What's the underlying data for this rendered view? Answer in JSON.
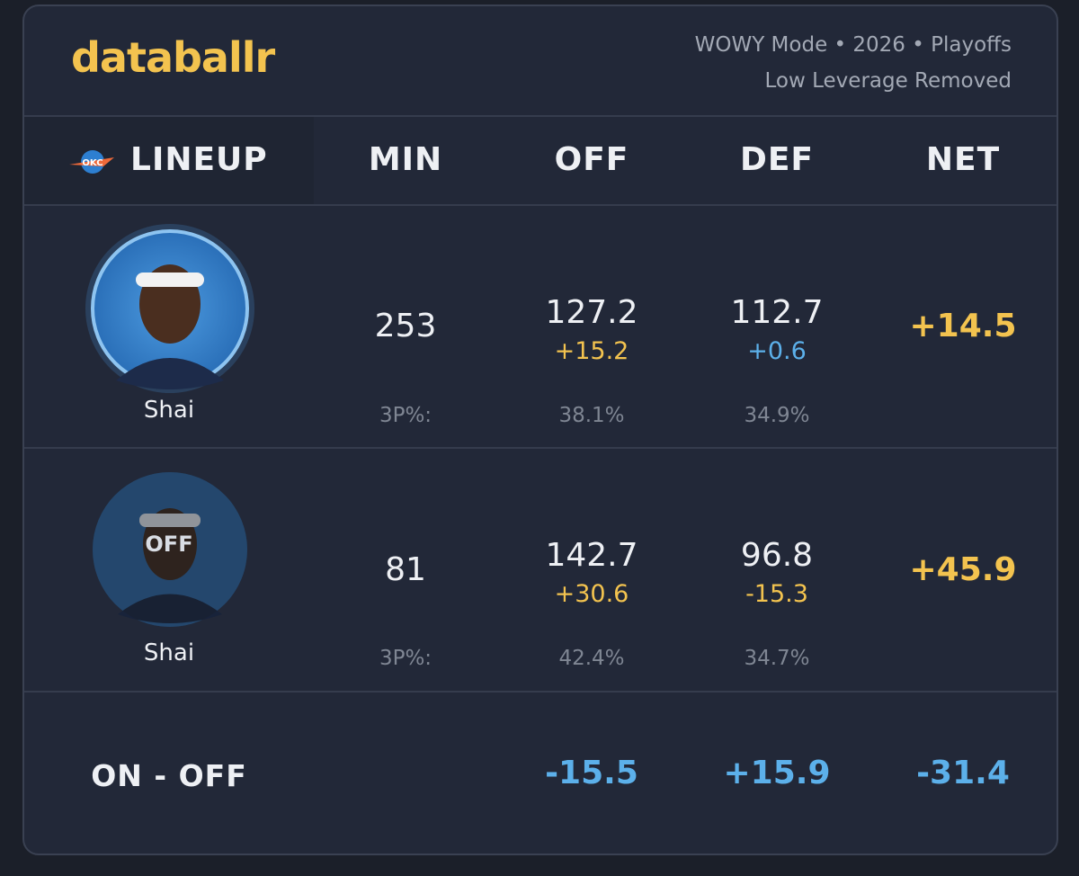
{
  "header": {
    "brand": "databallr",
    "subtitle": [
      "WOWY Mode • 2026 • Playoffs",
      "Low Leverage Removed"
    ]
  },
  "columns": [
    "LINEUP",
    "MIN",
    "OFF",
    "DEF",
    "NET"
  ],
  "rows": [
    {
      "player": "Shai",
      "min": "253",
      "off": "127.2",
      "off_diff": "+15.2",
      "def": "112.7",
      "def_diff": "+0.6",
      "net": "+14.5",
      "three_label": "3P%:",
      "off_3p": "38.1%",
      "def_3p": "34.9%"
    },
    {
      "player": "Shai",
      "badge": "OFF",
      "min": "81",
      "off": "142.7",
      "off_diff": "+30.6",
      "def": "96.8",
      "def_diff": "-15.3",
      "net": "+45.9",
      "three_label": "3P%:",
      "off_3p": "42.4%",
      "def_3p": "34.7%"
    }
  ],
  "summary": {
    "label": "ON - OFF",
    "off": "-15.5",
    "def": "+15.9",
    "net": "-31.4"
  }
}
